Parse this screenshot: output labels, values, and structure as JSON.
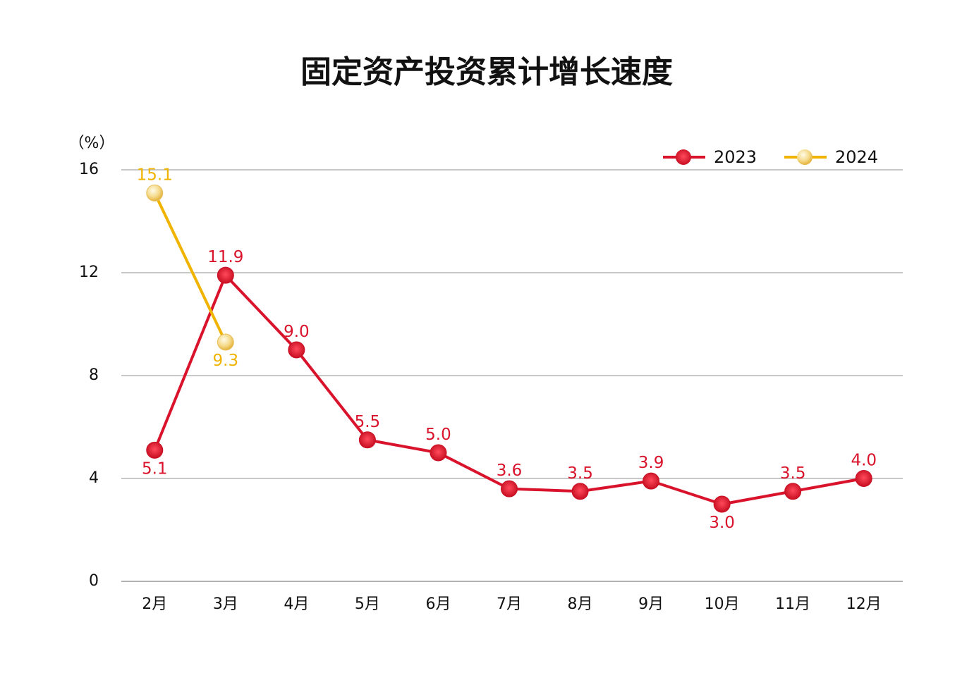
{
  "chart_data": {
    "type": "line",
    "title": "固定资产投资累计增长速度",
    "y_label": "（%）",
    "categories": [
      "2月",
      "3月",
      "4月",
      "5月",
      "6月",
      "7月",
      "8月",
      "9月",
      "10月",
      "11月",
      "12月"
    ],
    "series": [
      {
        "name": "2023",
        "color": "#d9132b",
        "values": [
          5.1,
          11.9,
          9.0,
          5.5,
          5.0,
          3.6,
          3.5,
          3.9,
          3.0,
          3.5,
          4.0
        ],
        "value_labels": [
          "5.1",
          "11.9",
          "9.0",
          "5.5",
          "5.0",
          "3.6",
          "3.5",
          "3.9",
          "3.0",
          "3.5",
          "4.0"
        ]
      },
      {
        "name": "2024",
        "color": "#f0b400",
        "values": [
          15.1,
          9.3,
          null,
          null,
          null,
          null,
          null,
          null,
          null,
          null,
          null
        ],
        "value_labels": [
          "15.1",
          "9.3",
          null,
          null,
          null,
          null,
          null,
          null,
          null,
          null,
          null
        ]
      }
    ],
    "ylim": [
      0,
      16
    ],
    "yticks": [
      0,
      4,
      8,
      12,
      16
    ],
    "grid": true,
    "legend": "top-right"
  }
}
